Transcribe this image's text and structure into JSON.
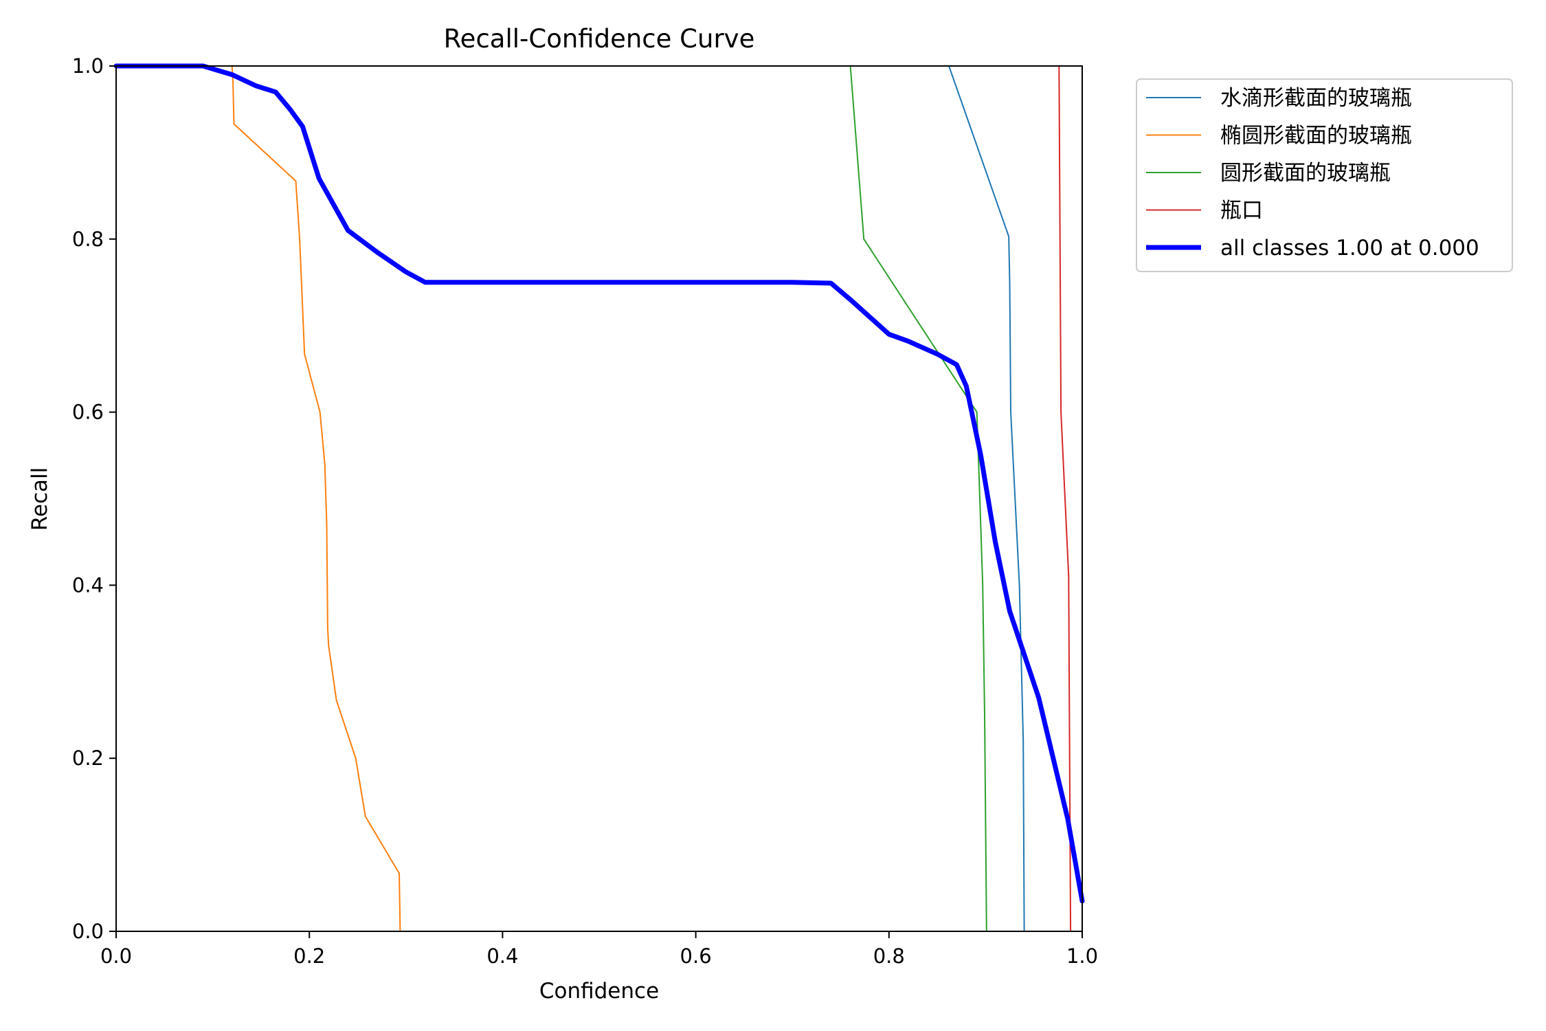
{
  "chart_data": {
    "type": "line",
    "title": "Recall-Confidence Curve",
    "xlabel": "Confidence",
    "ylabel": "Recall",
    "xlim": [
      0,
      1
    ],
    "ylim": [
      0,
      1
    ],
    "xticks": [
      "0.0",
      "0.2",
      "0.4",
      "0.6",
      "0.8",
      "1.0"
    ],
    "yticks": [
      "0.0",
      "0.2",
      "0.4",
      "0.6",
      "0.8",
      "1.0"
    ],
    "grid": false,
    "legend_position": "outside-upper-right",
    "series": [
      {
        "name": "水滴形截面的玻璃瓶",
        "color": "#1f77b4",
        "points": [
          [
            0.0,
            1.0
          ],
          [
            0.862,
            1.0
          ],
          [
            0.924,
            0.803
          ],
          [
            0.925,
            0.75
          ],
          [
            0.926,
            0.6
          ],
          [
            0.935,
            0.4
          ],
          [
            0.939,
            0.22
          ],
          [
            0.94,
            0.0
          ],
          [
            1.0,
            0.0
          ]
        ]
      },
      {
        "name": "椭圆形截面的玻璃瓶",
        "color": "#ff7f0e",
        "points": [
          [
            0.0,
            1.0
          ],
          [
            0.12,
            1.0
          ],
          [
            0.121,
            0.98
          ],
          [
            0.122,
            0.933
          ],
          [
            0.186,
            0.867
          ],
          [
            0.19,
            0.8
          ],
          [
            0.195,
            0.667
          ],
          [
            0.211,
            0.6
          ],
          [
            0.216,
            0.54
          ],
          [
            0.218,
            0.47
          ],
          [
            0.219,
            0.35
          ],
          [
            0.22,
            0.33
          ],
          [
            0.228,
            0.267
          ],
          [
            0.248,
            0.2
          ],
          [
            0.258,
            0.133
          ],
          [
            0.293,
            0.067
          ],
          [
            0.294,
            0.0
          ],
          [
            1.0,
            0.0
          ]
        ]
      },
      {
        "name": "圆形截面的玻璃瓶",
        "color": "#2ca02c",
        "points": [
          [
            0.0,
            1.0
          ],
          [
            0.76,
            1.0
          ],
          [
            0.774,
            0.8
          ],
          [
            0.891,
            0.6
          ],
          [
            0.894,
            0.5
          ],
          [
            0.897,
            0.4
          ],
          [
            0.899,
            0.25
          ],
          [
            0.901,
            0.0
          ],
          [
            1.0,
            0.0
          ]
        ]
      },
      {
        "name": "瓶口",
        "color": "#d62728",
        "points": [
          [
            0.0,
            1.0
          ],
          [
            0.976,
            1.0
          ],
          [
            0.978,
            0.6
          ],
          [
            0.986,
            0.41
          ],
          [
            0.987,
            0.2
          ],
          [
            0.988,
            0.0
          ],
          [
            1.0,
            0.0
          ]
        ]
      },
      {
        "name": "all classes 1.00 at 0.000",
        "color": "#0000ff",
        "bold": true,
        "points": [
          [
            0.0,
            1.0
          ],
          [
            0.09,
            1.0
          ],
          [
            0.12,
            0.99
          ],
          [
            0.145,
            0.977
          ],
          [
            0.165,
            0.97
          ],
          [
            0.18,
            0.95
          ],
          [
            0.193,
            0.93
          ],
          [
            0.21,
            0.87
          ],
          [
            0.24,
            0.81
          ],
          [
            0.27,
            0.785
          ],
          [
            0.3,
            0.762
          ],
          [
            0.32,
            0.75
          ],
          [
            0.5,
            0.75
          ],
          [
            0.6,
            0.75
          ],
          [
            0.7,
            0.75
          ],
          [
            0.74,
            0.749
          ],
          [
            0.76,
            0.73
          ],
          [
            0.78,
            0.71
          ],
          [
            0.8,
            0.69
          ],
          [
            0.82,
            0.682
          ],
          [
            0.85,
            0.667
          ],
          [
            0.87,
            0.655
          ],
          [
            0.88,
            0.63
          ],
          [
            0.895,
            0.55
          ],
          [
            0.91,
            0.45
          ],
          [
            0.925,
            0.37
          ],
          [
            0.94,
            0.32
          ],
          [
            0.955,
            0.27
          ],
          [
            0.97,
            0.2
          ],
          [
            0.985,
            0.13
          ],
          [
            1.0,
            0.035
          ]
        ]
      }
    ]
  }
}
